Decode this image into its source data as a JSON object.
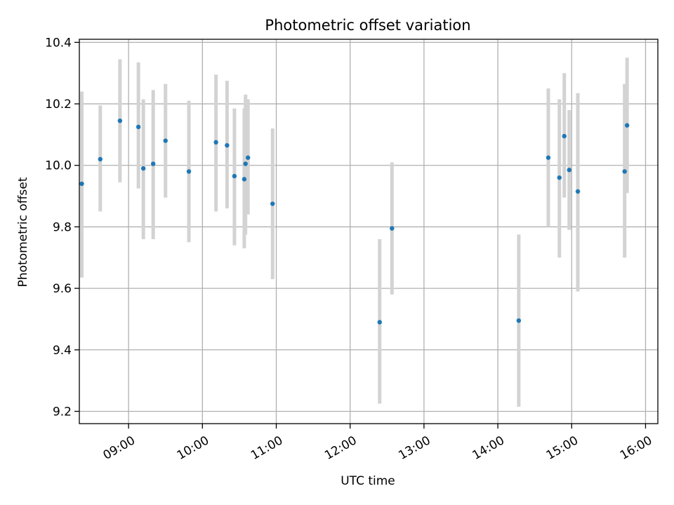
{
  "chart_data": {
    "type": "scatter",
    "title": "Photometric offset variation",
    "xlabel": "UTC time",
    "ylabel": "Photometric offset",
    "xlim": [
      "08:20",
      "16:10"
    ],
    "ylim": [
      9.16,
      10.41
    ],
    "grid": true,
    "x_ticks": [
      "09:00",
      "10:00",
      "11:00",
      "12:00",
      "13:00",
      "14:00",
      "15:00",
      "16:00"
    ],
    "y_ticks": [
      9.2,
      9.4,
      9.6,
      9.8,
      10.0,
      10.2,
      10.4
    ],
    "y_tick_labels": [
      "9.2",
      "9.4",
      "9.6",
      "9.8",
      "10.0",
      "10.2",
      "10.4"
    ],
    "marker_color": "#1f77b4",
    "errorbar_color": "#d3d3d3",
    "points": [
      {
        "t": "08:22",
        "y": 9.94,
        "lo": 9.635,
        "hi": 10.24
      },
      {
        "t": "08:37",
        "y": 10.02,
        "lo": 9.85,
        "hi": 10.195
      },
      {
        "t": "08:53",
        "y": 10.145,
        "lo": 9.945,
        "hi": 10.345
      },
      {
        "t": "09:08",
        "y": 10.125,
        "lo": 9.925,
        "hi": 10.335
      },
      {
        "t": "09:12",
        "y": 9.99,
        "lo": 9.76,
        "hi": 10.215
      },
      {
        "t": "09:20",
        "y": 10.005,
        "lo": 9.76,
        "hi": 10.245
      },
      {
        "t": "09:30",
        "y": 10.08,
        "lo": 9.895,
        "hi": 10.265
      },
      {
        "t": "09:49",
        "y": 9.98,
        "lo": 9.75,
        "hi": 10.21
      },
      {
        "t": "10:11",
        "y": 10.075,
        "lo": 9.85,
        "hi": 10.295
      },
      {
        "t": "10:20",
        "y": 10.065,
        "lo": 9.86,
        "hi": 10.275
      },
      {
        "t": "10:26",
        "y": 9.965,
        "lo": 9.74,
        "hi": 10.185
      },
      {
        "t": "10:34",
        "y": 9.955,
        "lo": 9.73,
        "hi": 10.185
      },
      {
        "t": "10:35",
        "y": 10.005,
        "lo": 9.775,
        "hi": 10.23
      },
      {
        "t": "10:37",
        "y": 10.025,
        "lo": 9.84,
        "hi": 10.215
      },
      {
        "t": "10:57",
        "y": 9.875,
        "lo": 9.63,
        "hi": 10.12
      },
      {
        "t": "12:24",
        "y": 9.49,
        "lo": 9.225,
        "hi": 9.76
      },
      {
        "t": "12:34",
        "y": 9.795,
        "lo": 9.58,
        "hi": 10.01
      },
      {
        "t": "14:17",
        "y": 9.495,
        "lo": 9.215,
        "hi": 9.775
      },
      {
        "t": "14:41",
        "y": 10.025,
        "lo": 9.8,
        "hi": 10.25
      },
      {
        "t": "14:50",
        "y": 9.96,
        "lo": 9.7,
        "hi": 10.215
      },
      {
        "t": "14:54",
        "y": 10.095,
        "lo": 9.895,
        "hi": 10.3
      },
      {
        "t": "14:58",
        "y": 9.985,
        "lo": 9.79,
        "hi": 10.18
      },
      {
        "t": "15:05",
        "y": 9.915,
        "lo": 9.59,
        "hi": 10.235
      },
      {
        "t": "15:43",
        "y": 9.98,
        "lo": 9.7,
        "hi": 10.265
      },
      {
        "t": "15:45",
        "y": 10.13,
        "lo": 9.91,
        "hi": 10.35
      }
    ]
  }
}
